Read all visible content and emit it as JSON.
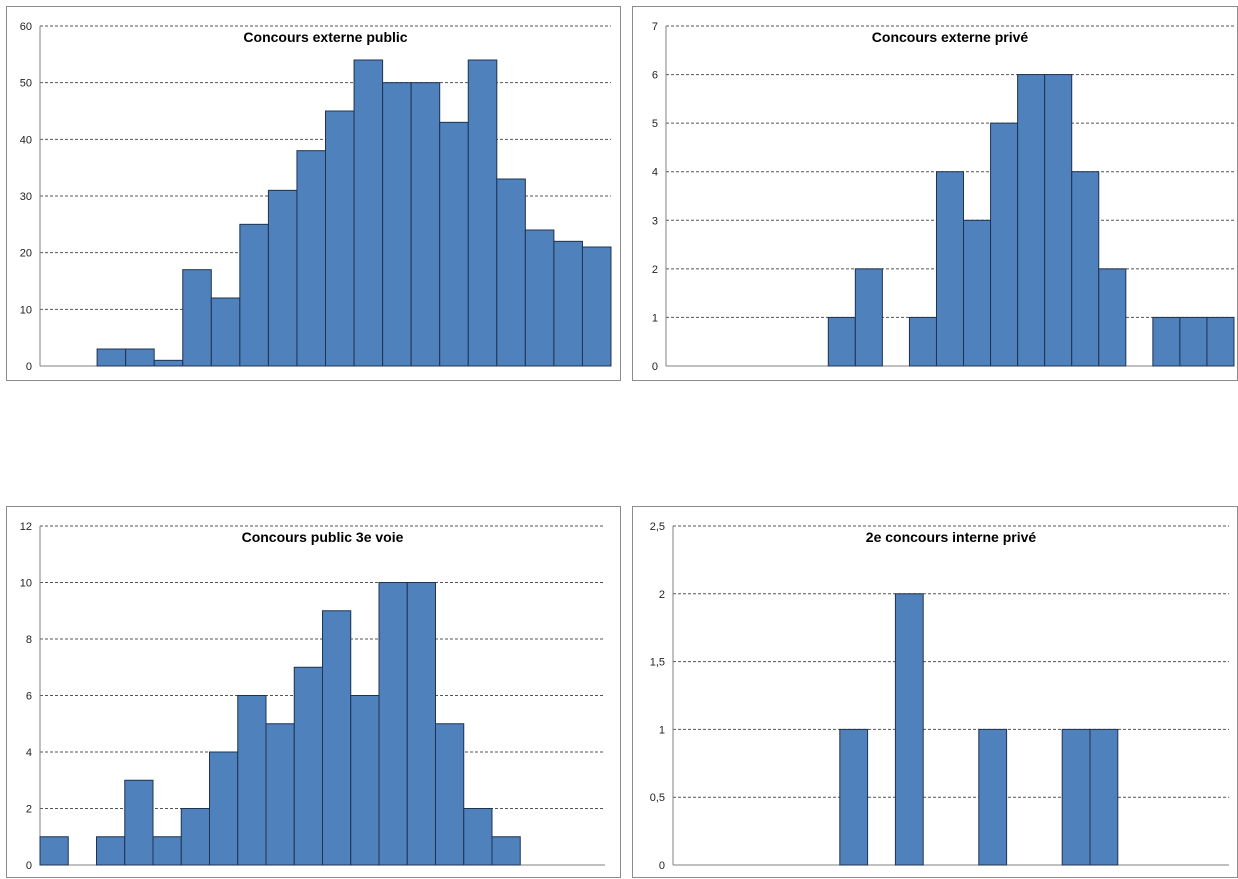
{
  "colors": {
    "bar": "#4f81bd",
    "bar_edge": "#1f3350"
  },
  "chart_data": [
    {
      "type": "bar",
      "title": "Concours externe public",
      "ylim": [
        0,
        60
      ],
      "yticks": [
        "0",
        "10",
        "20",
        "30",
        "40",
        "50",
        "60"
      ],
      "values": [
        0,
        0,
        3,
        3,
        1,
        17,
        12,
        25,
        31,
        38,
        45,
        54,
        50,
        50,
        43,
        54,
        33,
        24,
        22,
        21
      ],
      "grid": true
    },
    {
      "type": "bar",
      "title": "Concours externe privé",
      "ylim": [
        0,
        7
      ],
      "yticks": [
        "0",
        "1",
        "2",
        "3",
        "4",
        "5",
        "6",
        "7"
      ],
      "values": [
        0,
        0,
        0,
        0,
        0,
        0,
        1,
        2,
        0,
        1,
        4,
        3,
        5,
        6,
        6,
        4,
        2,
        0,
        1,
        1,
        1
      ],
      "grid": true
    },
    {
      "type": "bar",
      "title": "Concours public 3e voie",
      "ylim": [
        0,
        12
      ],
      "yticks": [
        "0",
        "2",
        "4",
        "6",
        "8",
        "10",
        "12"
      ],
      "values": [
        1,
        0,
        1,
        3,
        1,
        2,
        4,
        6,
        5,
        7,
        9,
        6,
        10,
        10,
        5,
        2,
        1,
        0,
        0,
        0
      ],
      "grid": true
    },
    {
      "type": "bar",
      "title": "2e concours interne privé",
      "ylim": [
        0,
        2.5
      ],
      "yticks": [
        "0",
        "0,5",
        "1",
        "1,5",
        "2",
        "2,5"
      ],
      "values": [
        0,
        0,
        0,
        0,
        0,
        0,
        1,
        0,
        2,
        0,
        0,
        1,
        0,
        0,
        1,
        1,
        0,
        0,
        0,
        0
      ],
      "grid": true
    }
  ]
}
